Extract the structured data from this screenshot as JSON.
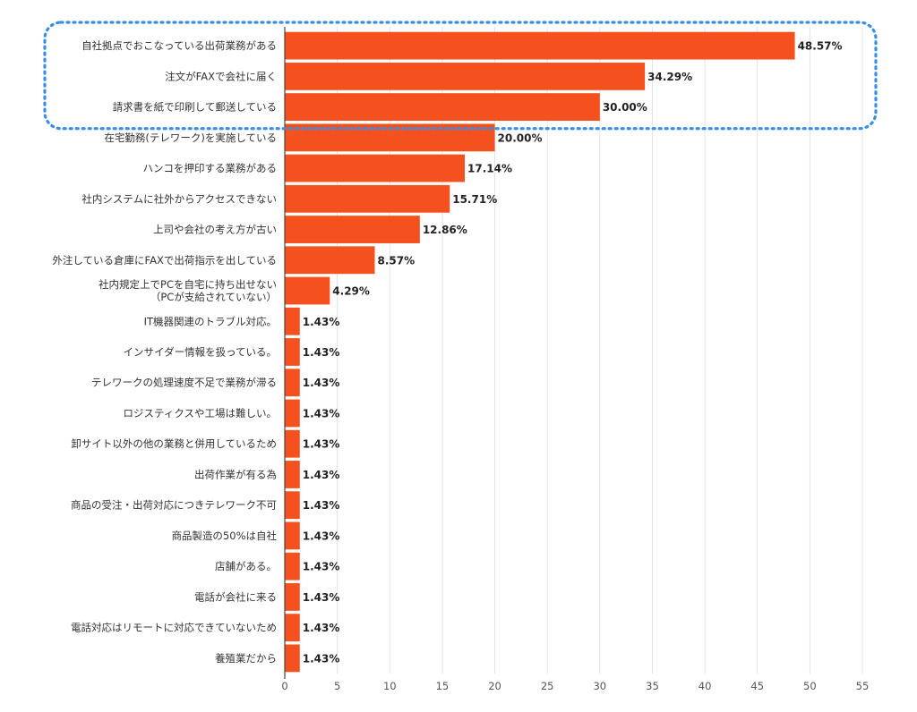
{
  "chart_data": {
    "type": "bar",
    "orientation": "horizontal",
    "title": "",
    "xlabel": "",
    "ylabel": "",
    "xlim": [
      0,
      55
    ],
    "xticks": [
      0,
      5,
      10,
      15,
      20,
      25,
      30,
      35,
      40,
      45,
      50,
      55
    ],
    "grid": true,
    "bar_color": "#f4511e",
    "highlight_color": "#3a8ee6",
    "highlighted_categories": [
      0,
      1,
      2
    ],
    "categories": [
      [
        "自社拠点でおこなっている出荷業務がある"
      ],
      [
        "注文がFAXで会社に届く"
      ],
      [
        "請求書を紙で印刷して郵送している"
      ],
      [
        "在宅勤務(テレワーク)を実施している"
      ],
      [
        "ハンコを押印する業務がある"
      ],
      [
        "社内システムに社外からアクセスできない"
      ],
      [
        "上司や会社の考え方が古い"
      ],
      [
        "外注している倉庫にFAXで出荷指示を出している"
      ],
      [
        "社内規定上でPCを自宅に持ち出せない",
        "（PCが支給されていない）"
      ],
      [
        "IT機器関連のトラブル対応。"
      ],
      [
        "インサイダー情報を扱っている。"
      ],
      [
        "テレワークの処理速度不足で業務が滞る"
      ],
      [
        "ロジスティクスや工場は難しい。"
      ],
      [
        "卸サイト以外の他の業務と併用しているため"
      ],
      [
        "出荷作業が有る為"
      ],
      [
        "商品の受注・出荷対応につきテレワーク不可"
      ],
      [
        "商品製造の50%は自社"
      ],
      [
        "店舗がある。"
      ],
      [
        "電話が会社に来る"
      ],
      [
        "電話対応はリモートに対応できていないため"
      ],
      [
        "養殖業だから"
      ]
    ],
    "values": [
      48.57,
      34.29,
      30.0,
      20.0,
      17.14,
      15.71,
      12.86,
      8.57,
      4.29,
      1.43,
      1.43,
      1.43,
      1.43,
      1.43,
      1.43,
      1.43,
      1.43,
      1.43,
      1.43,
      1.43,
      1.43
    ],
    "value_labels": [
      "48.57%",
      "34.29%",
      "30.00%",
      "20.00%",
      "17.14%",
      "15.71%",
      "12.86%",
      "8.57%",
      "4.29%",
      "1.43%",
      "1.43%",
      "1.43%",
      "1.43%",
      "1.43%",
      "1.43%",
      "1.43%",
      "1.43%",
      "1.43%",
      "1.43%",
      "1.43%",
      "1.43%"
    ]
  }
}
